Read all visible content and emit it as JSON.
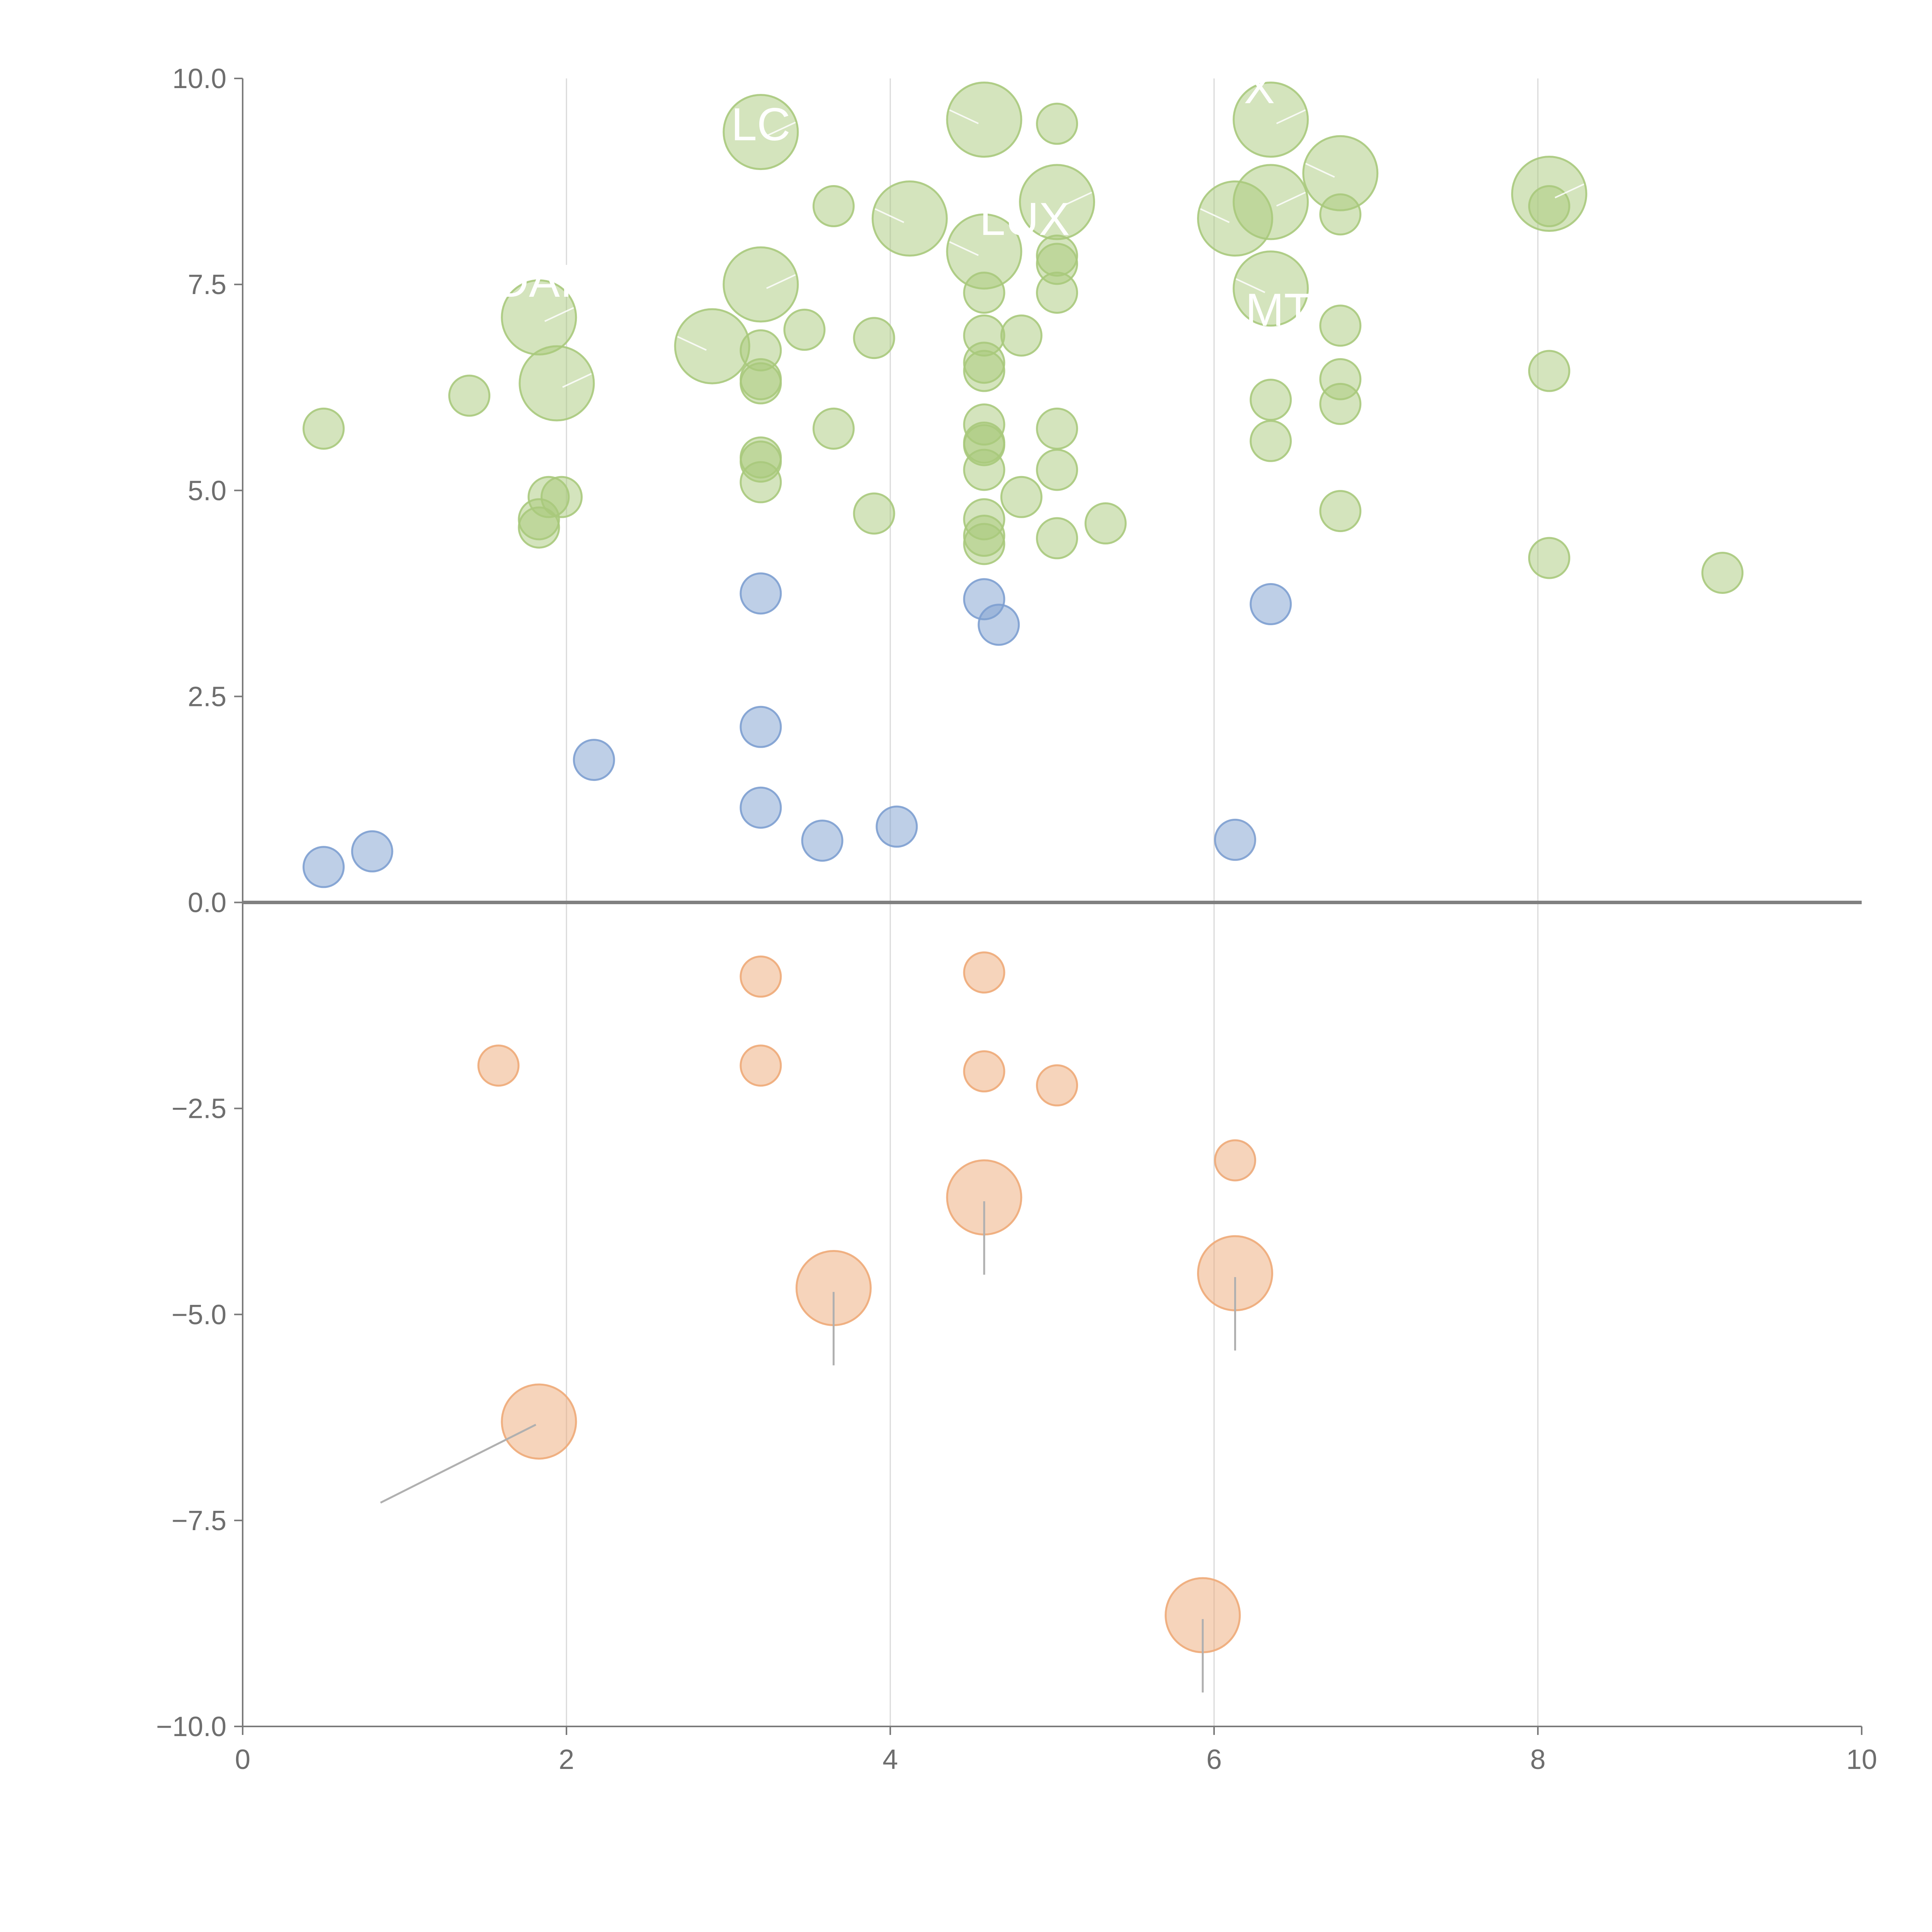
{
  "chart_data": {
    "type": "scatter",
    "title": "",
    "xlabel": "",
    "ylabel": "",
    "xlim": [
      0,
      10
    ],
    "ylim": [
      -10,
      10
    ],
    "grid": "vertical",
    "x_ticks": [
      "0",
      "2",
      "4",
      "6",
      "8",
      "10"
    ],
    "y_ticks": [
      "10.0",
      "7.5",
      "5.0",
      "2.5",
      "0.0",
      "−2.5",
      "−5.0",
      "−7.5",
      "−10.0"
    ],
    "colors": {
      "green": "#a9c97c",
      "blue": "#7d9fd0",
      "orange": "#eeaa78"
    },
    "series": [
      {
        "name": "green",
        "points": [
          {
            "x": 3.2,
            "y": 9.35,
            "s": "large"
          },
          {
            "x": 4.58,
            "y": 9.5,
            "s": "large"
          },
          {
            "x": 5.03,
            "y": 9.45,
            "s": "small"
          },
          {
            "x": 6.35,
            "y": 9.5,
            "s": "large"
          },
          {
            "x": 6.78,
            "y": 8.85,
            "s": "large"
          },
          {
            "x": 8.07,
            "y": 8.6,
            "s": "large"
          },
          {
            "x": 8.07,
            "y": 8.45,
            "s": "small"
          },
          {
            "x": 3.65,
            "y": 8.45,
            "s": "small"
          },
          {
            "x": 4.12,
            "y": 8.3,
            "s": "large"
          },
          {
            "x": 5.03,
            "y": 8.5,
            "s": "large"
          },
          {
            "x": 6.13,
            "y": 8.3,
            "s": "large"
          },
          {
            "x": 6.35,
            "y": 8.5,
            "s": "large"
          },
          {
            "x": 6.78,
            "y": 8.35,
            "s": "small"
          },
          {
            "x": 4.58,
            "y": 7.9,
            "s": "large"
          },
          {
            "x": 5.03,
            "y": 7.85,
            "s": "small"
          },
          {
            "x": 5.03,
            "y": 7.75,
            "s": "small"
          },
          {
            "x": 3.2,
            "y": 7.5,
            "s": "large"
          },
          {
            "x": 4.58,
            "y": 7.4,
            "s": "small"
          },
          {
            "x": 5.03,
            "y": 7.4,
            "s": "small"
          },
          {
            "x": 6.35,
            "y": 7.45,
            "s": "large"
          },
          {
            "x": 1.83,
            "y": 7.1,
            "s": "large"
          },
          {
            "x": 3.47,
            "y": 6.95,
            "s": "small"
          },
          {
            "x": 6.78,
            "y": 7.0,
            "s": "small"
          },
          {
            "x": 2.9,
            "y": 6.75,
            "s": "large"
          },
          {
            "x": 3.2,
            "y": 6.7,
            "s": "small"
          },
          {
            "x": 3.9,
            "y": 6.85,
            "s": "small"
          },
          {
            "x": 4.58,
            "y": 6.88,
            "s": "small"
          },
          {
            "x": 4.81,
            "y": 6.88,
            "s": "small"
          },
          {
            "x": 4.58,
            "y": 6.55,
            "s": "small"
          },
          {
            "x": 4.58,
            "y": 6.45,
            "s": "small"
          },
          {
            "x": 3.2,
            "y": 6.35,
            "s": "small"
          },
          {
            "x": 3.2,
            "y": 6.3,
            "s": "small"
          },
          {
            "x": 1.94,
            "y": 6.3,
            "s": "large"
          },
          {
            "x": 1.4,
            "y": 6.15,
            "s": "small"
          },
          {
            "x": 6.78,
            "y": 6.35,
            "s": "small"
          },
          {
            "x": 8.07,
            "y": 6.45,
            "s": "small"
          },
          {
            "x": 6.35,
            "y": 6.1,
            "s": "small"
          },
          {
            "x": 6.78,
            "y": 6.05,
            "s": "small"
          },
          {
            "x": 0.5,
            "y": 5.75,
            "s": "small"
          },
          {
            "x": 3.65,
            "y": 5.75,
            "s": "small"
          },
          {
            "x": 4.58,
            "y": 5.8,
            "s": "small"
          },
          {
            "x": 5.03,
            "y": 5.75,
            "s": "small"
          },
          {
            "x": 6.35,
            "y": 5.6,
            "s": "small"
          },
          {
            "x": 4.58,
            "y": 5.58,
            "s": "small"
          },
          {
            "x": 4.58,
            "y": 5.55,
            "s": "small"
          },
          {
            "x": 3.2,
            "y": 5.4,
            "s": "small"
          },
          {
            "x": 3.2,
            "y": 5.35,
            "s": "small"
          },
          {
            "x": 4.58,
            "y": 5.25,
            "s": "small"
          },
          {
            "x": 5.03,
            "y": 5.25,
            "s": "small"
          },
          {
            "x": 3.2,
            "y": 5.1,
            "s": "small"
          },
          {
            "x": 1.89,
            "y": 4.92,
            "s": "small"
          },
          {
            "x": 1.97,
            "y": 4.92,
            "s": "small"
          },
          {
            "x": 4.81,
            "y": 4.92,
            "s": "small"
          },
          {
            "x": 1.83,
            "y": 4.65,
            "s": "small"
          },
          {
            "x": 1.83,
            "y": 4.55,
            "s": "small"
          },
          {
            "x": 3.9,
            "y": 4.72,
            "s": "small"
          },
          {
            "x": 6.78,
            "y": 4.75,
            "s": "small"
          },
          {
            "x": 4.58,
            "y": 4.65,
            "s": "small"
          },
          {
            "x": 5.33,
            "y": 4.6,
            "s": "small"
          },
          {
            "x": 4.58,
            "y": 4.45,
            "s": "small"
          },
          {
            "x": 4.58,
            "y": 4.35,
            "s": "small"
          },
          {
            "x": 5.03,
            "y": 4.42,
            "s": "small"
          },
          {
            "x": 8.07,
            "y": 4.18,
            "s": "small"
          },
          {
            "x": 9.14,
            "y": 4.0,
            "s": "small"
          }
        ]
      },
      {
        "name": "blue",
        "points": [
          {
            "x": 3.2,
            "y": 3.75,
            "s": "small"
          },
          {
            "x": 4.58,
            "y": 3.68,
            "s": "small"
          },
          {
            "x": 4.67,
            "y": 3.37,
            "s": "small"
          },
          {
            "x": 6.35,
            "y": 3.62,
            "s": "small"
          },
          {
            "x": 3.2,
            "y": 2.13,
            "s": "small"
          },
          {
            "x": 2.17,
            "y": 1.73,
            "s": "small"
          },
          {
            "x": 3.2,
            "y": 1.15,
            "s": "small"
          },
          {
            "x": 4.04,
            "y": 0.92,
            "s": "small"
          },
          {
            "x": 3.58,
            "y": 0.75,
            "s": "small"
          },
          {
            "x": 6.13,
            "y": 0.76,
            "s": "small"
          },
          {
            "x": 0.8,
            "y": 0.62,
            "s": "small"
          },
          {
            "x": 0.5,
            "y": 0.43,
            "s": "small"
          }
        ]
      },
      {
        "name": "orange",
        "points": [
          {
            "x": 3.2,
            "y": -0.9,
            "s": "small"
          },
          {
            "x": 4.58,
            "y": -0.85,
            "s": "small"
          },
          {
            "x": 1.58,
            "y": -1.98,
            "s": "small"
          },
          {
            "x": 3.2,
            "y": -1.98,
            "s": "small"
          },
          {
            "x": 4.58,
            "y": -2.05,
            "s": "small"
          },
          {
            "x": 5.03,
            "y": -2.22,
            "s": "small"
          },
          {
            "x": 6.13,
            "y": -3.13,
            "s": "small"
          },
          {
            "x": 4.58,
            "y": -3.58,
            "s": "large"
          },
          {
            "x": 6.13,
            "y": -4.5,
            "s": "large"
          },
          {
            "x": 3.65,
            "y": -4.68,
            "s": "large"
          },
          {
            "x": 1.83,
            "y": -6.3,
            "s": "large"
          },
          {
            "x": 5.93,
            "y": -8.65,
            "s": "large"
          }
        ]
      }
    ],
    "annotations": [
      {
        "text": "X",
        "x": 6.28,
        "y": 9.7
      },
      {
        "text": "LC",
        "x": 3.2,
        "y": 9.25
      },
      {
        "text": "LUX",
        "x": 4.83,
        "y": 8.1
      },
      {
        "text": "DAI",
        "x": 1.8,
        "y": 7.35
      },
      {
        "text": "MT",
        "x": 6.4,
        "y": 7.0
      }
    ]
  }
}
